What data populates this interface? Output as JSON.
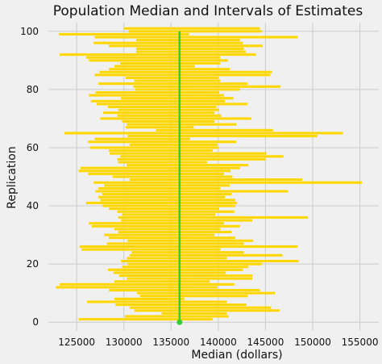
{
  "chart_data": {
    "type": "scatter",
    "title": "Population Median and Intervals of Estimates",
    "xlabel": "Median (dollars)",
    "ylabel": "Replication",
    "xlim": [
      122000,
      157000
    ],
    "ylim": [
      -3,
      103
    ],
    "xticks": [
      125000,
      130000,
      135000,
      140000,
      145000,
      150000,
      155000
    ],
    "yticks": [
      0,
      20,
      40,
      60,
      80,
      100
    ],
    "grid": true,
    "colors": {
      "background": "#f0f0f0",
      "intervals": "#ffd700",
      "population_median_line": "#32cd32",
      "population_median_point": "#32cd32"
    },
    "population_median": 135900,
    "intervals": [
      [
        125200,
        139400
      ],
      [
        130100,
        141100
      ],
      [
        134000,
        140900
      ],
      [
        131100,
        146500
      ],
      [
        130600,
        145600
      ],
      [
        129100,
        143000
      ],
      [
        126100,
        140900
      ],
      [
        129000,
        136400
      ],
      [
        131700,
        143100
      ],
      [
        131400,
        146000
      ],
      [
        128400,
        144400
      ],
      [
        122800,
        139900
      ],
      [
        123200,
        141700
      ],
      [
        129000,
        139100
      ],
      [
        130300,
        143600
      ],
      [
        129500,
        143600
      ],
      [
        128900,
        140800
      ],
      [
        128300,
        142600
      ],
      [
        129800,
        143200
      ],
      [
        130400,
        144600
      ],
      [
        129700,
        148500
      ],
      [
        130300,
        140900
      ],
      [
        130600,
        146800
      ],
      [
        130800,
        142700
      ],
      [
        125500,
        140200
      ],
      [
        125300,
        148400
      ],
      [
        128200,
        142700
      ],
      [
        130400,
        143700
      ],
      [
        128400,
        141800
      ],
      [
        127900,
        139600
      ],
      [
        129400,
        141400
      ],
      [
        129000,
        140200
      ],
      [
        126600,
        142300
      ],
      [
        126300,
        140600
      ],
      [
        129700,
        143600
      ],
      [
        129400,
        149500
      ],
      [
        129800,
        139700
      ],
      [
        129300,
        141700
      ],
      [
        128400,
        140100
      ],
      [
        127700,
        141800
      ],
      [
        126000,
        142000
      ],
      [
        127500,
        141800
      ],
      [
        127300,
        140700
      ],
      [
        127700,
        141400
      ],
      [
        127000,
        147400
      ],
      [
        127300,
        140200
      ],
      [
        127900,
        141200
      ],
      [
        126800,
        155200
      ],
      [
        130600,
        148900
      ],
      [
        128800,
        141500
      ],
      [
        126200,
        140600
      ],
      [
        125200,
        141300
      ],
      [
        125400,
        142300
      ],
      [
        130300,
        143200
      ],
      [
        129400,
        138800
      ],
      [
        129300,
        145000
      ],
      [
        129600,
        146900
      ],
      [
        128500,
        145100
      ],
      [
        128400,
        139400
      ],
      [
        126400,
        140000
      ],
      [
        130600,
        139900
      ],
      [
        126200,
        141900
      ],
      [
        126900,
        137000
      ],
      [
        130400,
        150500
      ],
      [
        123700,
        153200
      ],
      [
        133400,
        145800
      ],
      [
        130200,
        137400
      ],
      [
        130300,
        141900
      ],
      [
        129800,
        139600
      ],
      [
        127500,
        143500
      ],
      [
        129300,
        140300
      ],
      [
        127800,
        139600
      ],
      [
        129400,
        140100
      ],
      [
        128300,
        139800
      ],
      [
        127100,
        143100
      ],
      [
        126500,
        140700
      ],
      [
        129700,
        141600
      ],
      [
        126300,
        140600
      ],
      [
        127000,
        140100
      ],
      [
        131200,
        142300
      ],
      [
        131000,
        146600
      ],
      [
        127300,
        143100
      ],
      [
        131100,
        140200
      ],
      [
        130200,
        140000
      ],
      [
        126900,
        145500
      ],
      [
        127400,
        145700
      ],
      [
        128400,
        141200
      ],
      [
        129000,
        137500
      ],
      [
        129600,
        140200
      ],
      [
        126300,
        141000
      ],
      [
        126000,
        140200
      ],
      [
        123200,
        144000
      ],
      [
        131300,
        142900
      ],
      [
        131300,
        142700
      ],
      [
        128400,
        144700
      ],
      [
        126800,
        142600
      ],
      [
        131300,
        142300
      ],
      [
        126900,
        148400
      ],
      [
        123100,
        136900
      ],
      [
        130500,
        144600
      ],
      [
        130000,
        144400
      ]
    ]
  }
}
